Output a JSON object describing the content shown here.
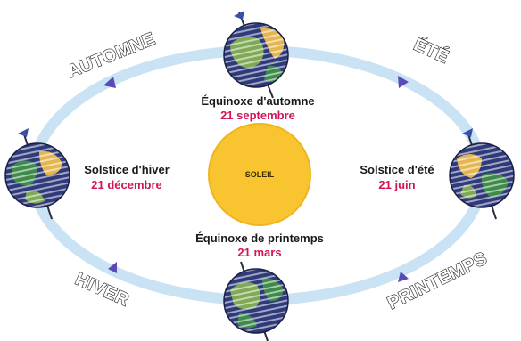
{
  "sun": {
    "label": "SOLEIL",
    "color": "#f8c531"
  },
  "orbit_color": "#c9e3f5",
  "arrow_color": "#5a4ab8",
  "seasons": {
    "autumn": "AUTOMNE",
    "summer": "ÉTÉ",
    "winter": "HIVER",
    "spring": "PRINTEMPS"
  },
  "events": {
    "autumn_equinox": {
      "name": "Équinoxe d'automne",
      "date": "21 septembre"
    },
    "winter_solstice": {
      "name": "Solstice d'hiver",
      "date": "21 décembre"
    },
    "summer_solstice": {
      "name": "Solstice d'été",
      "date": "21 juin"
    },
    "spring_equinox": {
      "name": "Équinoxe de printemps",
      "date": "21 mars"
    }
  }
}
